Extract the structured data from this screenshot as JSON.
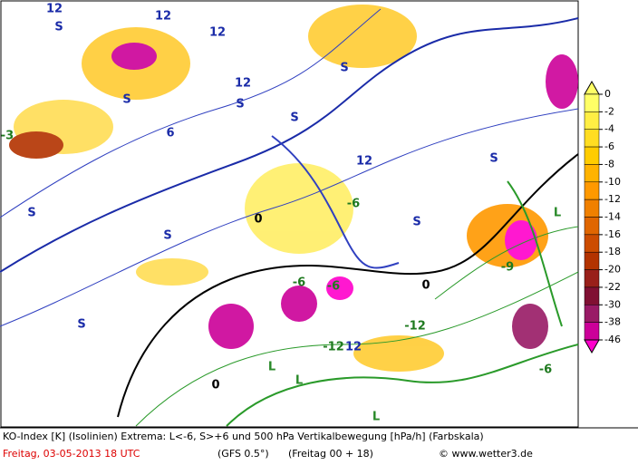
{
  "map": {
    "labels": [
      "12",
      "S",
      "12",
      "12",
      "S",
      "12",
      "S",
      "S",
      "S",
      "S",
      "6",
      "12",
      "S",
      "-6",
      "S",
      "S",
      "L",
      "L",
      "-12",
      "12",
      "-6",
      "-9",
      "L",
      "0",
      "0",
      "0",
      "-3",
      "-6",
      "-6",
      "S",
      "-12",
      "L"
    ],
    "legend": {
      "ticks": [
        0,
        -2,
        -4,
        -6,
        -8,
        -10,
        -12,
        -14,
        -16,
        -18,
        -20,
        -22,
        -30,
        -38,
        -46
      ],
      "colors": [
        "#ffff66",
        "#ffee44",
        "#ffdd22",
        "#ffcc00",
        "#ffb300",
        "#ff9900",
        "#f08000",
        "#e06600",
        "#cc4c00",
        "#b33300",
        "#99201a",
        "#801033",
        "#991a66",
        "#cc0099",
        "#ff00cc"
      ]
    }
  },
  "footer": {
    "line1": "KO-Index [K] (Isolinien) Extrema: L<-6, S>+6 und 500 hPa Vertikalbewegung [hPa/h] (Farbskala)",
    "date": "Freitag, 03-05-2013   18 UTC",
    "model": "(GFS 0.5°)",
    "run": "(Freitag 00 + 18)",
    "credit": "© www.wetter3.de"
  }
}
